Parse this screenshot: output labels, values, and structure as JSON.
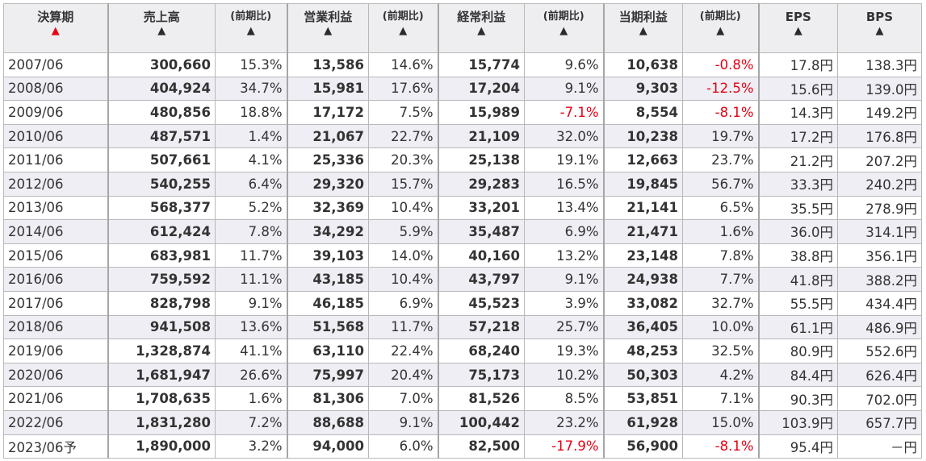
{
  "headers": {
    "year": "決算期",
    "sales": "売上高",
    "sales_pct": "(前期比)",
    "op": "営業利益",
    "op_pct": "(前期比)",
    "ord": "経常利益",
    "ord_pct": "(前期比)",
    "net": "当期利益",
    "net_pct": "(前期比)",
    "eps": "EPS",
    "bps": "BPS",
    "sort_arrow": "▲"
  },
  "colors": {
    "negative": "#e60012",
    "active_sort": "#e60012",
    "header_bg": "#eeeef1",
    "stripe_bg": "#eeeef4"
  },
  "rows": [
    {
      "year": "2007/06",
      "sales": "300,660",
      "sales_pct": "15.3%",
      "op": "13,586",
      "op_pct": "14.6%",
      "ord": "15,774",
      "ord_pct": "9.6%",
      "net": "10,638",
      "net_pct": "-0.8%",
      "eps": "17.8円",
      "bps": "138.3円"
    },
    {
      "year": "2008/06",
      "sales": "404,924",
      "sales_pct": "34.7%",
      "op": "15,981",
      "op_pct": "17.6%",
      "ord": "17,204",
      "ord_pct": "9.1%",
      "net": "9,303",
      "net_pct": "-12.5%",
      "eps": "15.6円",
      "bps": "139.0円"
    },
    {
      "year": "2009/06",
      "sales": "480,856",
      "sales_pct": "18.8%",
      "op": "17,172",
      "op_pct": "7.5%",
      "ord": "15,989",
      "ord_pct": "-7.1%",
      "net": "8,554",
      "net_pct": "-8.1%",
      "eps": "14.3円",
      "bps": "149.2円"
    },
    {
      "year": "2010/06",
      "sales": "487,571",
      "sales_pct": "1.4%",
      "op": "21,067",
      "op_pct": "22.7%",
      "ord": "21,109",
      "ord_pct": "32.0%",
      "net": "10,238",
      "net_pct": "19.7%",
      "eps": "17.2円",
      "bps": "176.8円"
    },
    {
      "year": "2011/06",
      "sales": "507,661",
      "sales_pct": "4.1%",
      "op": "25,336",
      "op_pct": "20.3%",
      "ord": "25,138",
      "ord_pct": "19.1%",
      "net": "12,663",
      "net_pct": "23.7%",
      "eps": "21.2円",
      "bps": "207.2円"
    },
    {
      "year": "2012/06",
      "sales": "540,255",
      "sales_pct": "6.4%",
      "op": "29,320",
      "op_pct": "15.7%",
      "ord": "29,283",
      "ord_pct": "16.5%",
      "net": "19,845",
      "net_pct": "56.7%",
      "eps": "33.3円",
      "bps": "240.2円"
    },
    {
      "year": "2013/06",
      "sales": "568,377",
      "sales_pct": "5.2%",
      "op": "32,369",
      "op_pct": "10.4%",
      "ord": "33,201",
      "ord_pct": "13.4%",
      "net": "21,141",
      "net_pct": "6.5%",
      "eps": "35.5円",
      "bps": "278.9円"
    },
    {
      "year": "2014/06",
      "sales": "612,424",
      "sales_pct": "7.8%",
      "op": "34,292",
      "op_pct": "5.9%",
      "ord": "35,487",
      "ord_pct": "6.9%",
      "net": "21,471",
      "net_pct": "1.6%",
      "eps": "36.0円",
      "bps": "314.1円"
    },
    {
      "year": "2015/06",
      "sales": "683,981",
      "sales_pct": "11.7%",
      "op": "39,103",
      "op_pct": "14.0%",
      "ord": "40,160",
      "ord_pct": "13.2%",
      "net": "23,148",
      "net_pct": "7.8%",
      "eps": "38.8円",
      "bps": "356.1円"
    },
    {
      "year": "2016/06",
      "sales": "759,592",
      "sales_pct": "11.1%",
      "op": "43,185",
      "op_pct": "10.4%",
      "ord": "43,797",
      "ord_pct": "9.1%",
      "net": "24,938",
      "net_pct": "7.7%",
      "eps": "41.8円",
      "bps": "388.2円"
    },
    {
      "year": "2017/06",
      "sales": "828,798",
      "sales_pct": "9.1%",
      "op": "46,185",
      "op_pct": "6.9%",
      "ord": "45,523",
      "ord_pct": "3.9%",
      "net": "33,082",
      "net_pct": "32.7%",
      "eps": "55.5円",
      "bps": "434.4円"
    },
    {
      "year": "2018/06",
      "sales": "941,508",
      "sales_pct": "13.6%",
      "op": "51,568",
      "op_pct": "11.7%",
      "ord": "57,218",
      "ord_pct": "25.7%",
      "net": "36,405",
      "net_pct": "10.0%",
      "eps": "61.1円",
      "bps": "486.9円"
    },
    {
      "year": "2019/06",
      "sales": "1,328,874",
      "sales_pct": "41.1%",
      "op": "63,110",
      "op_pct": "22.4%",
      "ord": "68,240",
      "ord_pct": "19.3%",
      "net": "48,253",
      "net_pct": "32.5%",
      "eps": "80.9円",
      "bps": "552.6円"
    },
    {
      "year": "2020/06",
      "sales": "1,681,947",
      "sales_pct": "26.6%",
      "op": "75,997",
      "op_pct": "20.4%",
      "ord": "75,173",
      "ord_pct": "10.2%",
      "net": "50,303",
      "net_pct": "4.2%",
      "eps": "84.4円",
      "bps": "626.4円"
    },
    {
      "year": "2021/06",
      "sales": "1,708,635",
      "sales_pct": "1.6%",
      "op": "81,306",
      "op_pct": "7.0%",
      "ord": "81,526",
      "ord_pct": "8.5%",
      "net": "53,851",
      "net_pct": "7.1%",
      "eps": "90.3円",
      "bps": "702.0円"
    },
    {
      "year": "2022/06",
      "sales": "1,831,280",
      "sales_pct": "7.2%",
      "op": "88,688",
      "op_pct": "9.1%",
      "ord": "100,442",
      "ord_pct": "23.2%",
      "net": "61,928",
      "net_pct": "15.0%",
      "eps": "103.9円",
      "bps": "657.7円"
    },
    {
      "year": "2023/06予",
      "sales": "1,890,000",
      "sales_pct": "3.2%",
      "op": "94,000",
      "op_pct": "6.0%",
      "ord": "82,500",
      "ord_pct": "-17.9%",
      "net": "56,900",
      "net_pct": "-8.1%",
      "eps": "95.4円",
      "bps": "－円"
    }
  ]
}
